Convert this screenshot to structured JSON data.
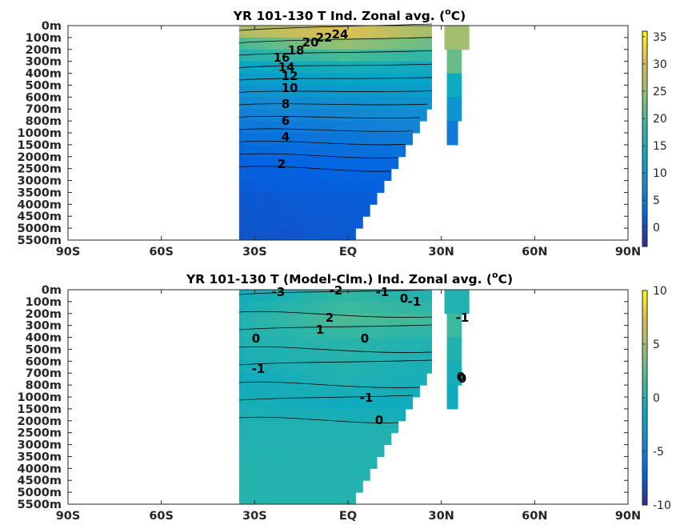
{
  "chart_data": [
    {
      "type": "heatmap",
      "title": "YR 101-130 T Ind. Zonal avg. (°C)",
      "title_main": "YR 101-130 T Ind. Zonal avg. (",
      "title_unit": "C)",
      "title_superscript": "o",
      "x_ticks": [
        "90S",
        "60S",
        "30S",
        "EQ",
        "30N",
        "60N",
        "90N"
      ],
      "x_values": [
        -90,
        -60,
        -30,
        0,
        30,
        60,
        90
      ],
      "y_ticks": [
        "0m",
        "100m",
        "200m",
        "300m",
        "400m",
        "500m",
        "600m",
        "700m",
        "800m",
        "1000m",
        "1500m",
        "2000m",
        "2500m",
        "3000m",
        "3500m",
        "4000m",
        "4500m",
        "5000m",
        "5500m"
      ],
      "colorbar": {
        "ticks": [
          0,
          5,
          10,
          15,
          20,
          25,
          30,
          35
        ],
        "range": [
          -3.5,
          36
        ],
        "colormap": "parula"
      },
      "contour_levels": [
        "2",
        "4",
        "6",
        "8",
        "10",
        "12",
        "14",
        "16",
        "18",
        "20",
        "22",
        "24"
      ],
      "ocean_extent_lat": [
        -35,
        27
      ],
      "secondary_basin_lat": [
        31,
        39
      ],
      "color_bands": [
        {
          "depth": "0m",
          "S": 27,
          "EQ": 31,
          "N": 26
        },
        {
          "depth": "100m",
          "S": 20,
          "EQ": 25,
          "N": 22
        },
        {
          "depth": "300m",
          "S": 13,
          "EQ": 15,
          "N": 14
        },
        {
          "depth": "600m",
          "S": 8,
          "EQ": 9,
          "N": 10
        },
        {
          "depth": "1000m",
          "S": 4,
          "EQ": 5,
          "N": 6
        },
        {
          "depth": "2000m",
          "S": 2,
          "EQ": 2.5,
          "N": 3
        },
        {
          "depth": "3500m",
          "S": 1,
          "EQ": 1.3,
          "N": 1.5
        },
        {
          "depth": "5500m",
          "S": 0.5,
          "EQ": 0.8,
          "N": 1
        }
      ]
    },
    {
      "type": "heatmap",
      "title": "YR 101-130 T (Model-Clm.) Ind. Zonal avg. (°C)",
      "title_main": "YR 101-130 T (Model-Clm.) Ind. Zonal avg. (",
      "title_unit": "C)",
      "title_superscript": "o",
      "x_ticks": [
        "90S",
        "60S",
        "30S",
        "EQ",
        "30N",
        "60N",
        "90N"
      ],
      "x_values": [
        -90,
        -60,
        -30,
        0,
        30,
        60,
        90
      ],
      "y_ticks": [
        "0m",
        "100m",
        "200m",
        "300m",
        "400m",
        "500m",
        "600m",
        "700m",
        "800m",
        "1000m",
        "1500m",
        "2000m",
        "2500m",
        "3000m",
        "3500m",
        "4000m",
        "4500m",
        "5000m",
        "5500m"
      ],
      "colorbar": {
        "ticks": [
          -10,
          -5,
          0,
          5,
          10
        ],
        "range": [
          -10,
          10
        ],
        "colormap": "parula"
      },
      "contour_levels": [
        "-3",
        "-2",
        "-1",
        "0",
        "1",
        "2",
        "-1",
        "0",
        "-1",
        "0",
        "0",
        "-1",
        "0",
        "-1",
        "0"
      ],
      "ocean_extent_lat": [
        -35,
        27
      ],
      "secondary_basin_lat": [
        31,
        39
      ],
      "color_bands": [
        {
          "depth": "0m",
          "S": -1,
          "EQ": 1,
          "N": 0
        },
        {
          "depth": "200m",
          "S": 0,
          "EQ": 2,
          "N": 1.5
        },
        {
          "depth": "400m",
          "S": 0,
          "EQ": 0.5,
          "N": 0
        },
        {
          "depth": "700m",
          "S": -1,
          "EQ": 0,
          "N": -0.6
        },
        {
          "depth": "1000m",
          "S": -0.5,
          "EQ": -1,
          "N": -1
        },
        {
          "depth": "2000m",
          "S": 0,
          "EQ": 0,
          "N": 0
        },
        {
          "depth": "4000m",
          "S": 0.3,
          "EQ": 0.2,
          "N": 0.2
        },
        {
          "depth": "5500m",
          "S": 0.2,
          "EQ": 0.2,
          "N": 0.2
        }
      ]
    }
  ]
}
